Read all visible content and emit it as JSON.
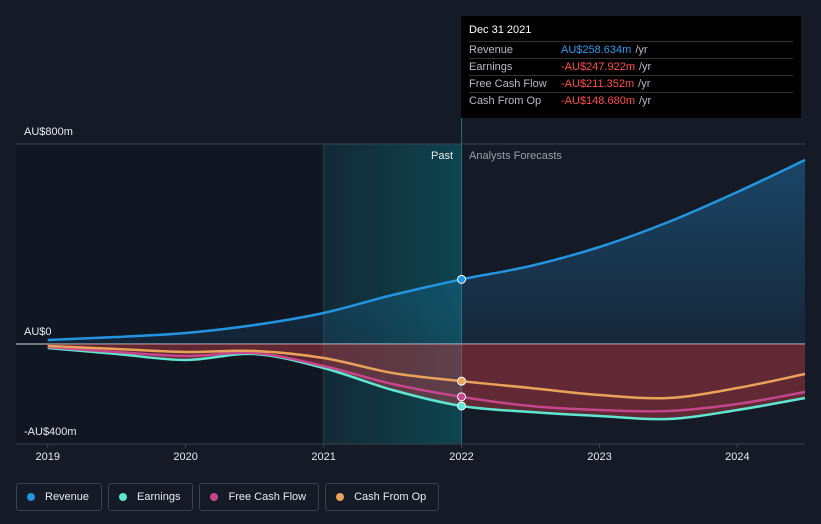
{
  "chart_data": {
    "type": "line",
    "x": [
      2019,
      2019.5,
      2020,
      2020.5,
      2021,
      2021.5,
      2022,
      2022.5,
      2023,
      2023.5,
      2024,
      2024.49
    ],
    "series": [
      {
        "name": "Revenue",
        "color": "#2394df",
        "values": [
          16,
          28,
          44,
          76,
          124,
          196,
          258.634,
          312,
          388,
          488,
          608,
          736
        ]
      },
      {
        "name": "Earnings",
        "color": "#5ee6d0",
        "values": [
          -16,
          -40,
          -64,
          -40,
          -96,
          -184,
          -247.922,
          -272,
          -288,
          -300,
          -264,
          -216
        ]
      },
      {
        "name": "Free Cash Flow",
        "color": "#c5468c",
        "values": [
          -12,
          -32,
          -48,
          -36,
          -88,
          -160,
          -211.352,
          -248,
          -264,
          -268,
          -240,
          -192
        ]
      },
      {
        "name": "Cash From Op",
        "color": "#e8a25a",
        "values": [
          -8,
          -20,
          -32,
          -28,
          -56,
          -116,
          -148.68,
          -176,
          -204,
          -216,
          -176,
          -120
        ]
      }
    ],
    "xlim": [
      2018.77,
      2024.49
    ],
    "xticks": [
      2019,
      2020,
      2021,
      2022,
      2023,
      2024
    ],
    "ylim": [
      -400,
      800
    ],
    "yticks": [
      {
        "value": 800,
        "label": "AU$800m"
      },
      {
        "value": 0,
        "label": "AU$0"
      },
      {
        "value": -400,
        "label": "-AU$400m"
      }
    ],
    "highlight_x": [
      2021,
      2022
    ],
    "annotations": {
      "past": "Past",
      "forecast": "Analysts Forecasts"
    },
    "tooltip": {
      "title": "Dec 31 2021",
      "rows": [
        {
          "label": "Revenue",
          "value": "AU$258.634m",
          "unit": "/yr"
        },
        {
          "label": "Earnings",
          "value": "-AU$247.922m",
          "unit": "/yr"
        },
        {
          "label": "Free Cash Flow",
          "value": "-AU$211.352m",
          "unit": "/yr"
        },
        {
          "label": "Cash From Op",
          "value": "-AU$148.680m",
          "unit": "/yr"
        }
      ]
    }
  }
}
